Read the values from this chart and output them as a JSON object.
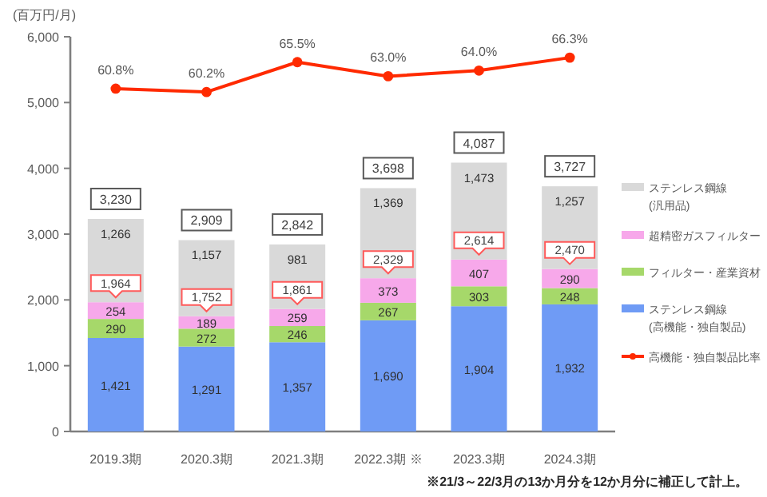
{
  "chart_data": {
    "type": "bar",
    "stacked": true,
    "ylabel": "(百万円/月)",
    "categories": [
      "2019.3期",
      "2020.3期",
      "2021.3期",
      "2022.3期 ※",
      "2023.3期",
      "2024.3期"
    ],
    "ylim": [
      0,
      6000
    ],
    "yticks": [
      {
        "value": 0,
        "label": "0"
      },
      {
        "value": 1000,
        "label": "1,000"
      },
      {
        "value": 2000,
        "label": "2,000"
      },
      {
        "value": 3000,
        "label": "3,000"
      },
      {
        "value": 4000,
        "label": "4,000"
      },
      {
        "value": 5000,
        "label": "5,000"
      },
      {
        "value": 6000,
        "label": "6,000"
      }
    ],
    "y2lim": [
      0,
      70
    ],
    "tick_labels": "xy",
    "grid": false,
    "legend": "right",
    "series": [
      {
        "name": "ステンレス鋼線\n(高機能・独自製品)",
        "color": "#6f9bf5",
        "values": [
          1421,
          1291,
          1357,
          1690,
          1904,
          1932
        ],
        "value_labels": [
          "1,421",
          "1,291",
          "1,357",
          "1,690",
          "1,904",
          "1,932"
        ]
      },
      {
        "name": "フィルター・産業資材",
        "color": "#a6d86a",
        "values": [
          290,
          272,
          246,
          267,
          303,
          248
        ],
        "value_labels": [
          "290",
          "272",
          "246",
          "267",
          "303",
          "248"
        ]
      },
      {
        "name": "超精密ガスフィルター",
        "color": "#f7a8ea",
        "values": [
          254,
          189,
          259,
          373,
          407,
          290
        ],
        "value_labels": [
          "254",
          "189",
          "259",
          "373",
          "407",
          "290"
        ]
      },
      {
        "name": "ステンレス鋼線\n(汎用品)",
        "color": "#d9d9d9",
        "values": [
          1266,
          1157,
          981,
          1369,
          1473,
          1257
        ],
        "value_labels": [
          "1,266",
          "1,157",
          "981",
          "1,369",
          "1,473",
          "1,257"
        ]
      },
      {
        "name": "高機能・独自製品比率",
        "type": "line",
        "axis": "y2",
        "marker": "circle",
        "line_style": "solid",
        "color": "#ff2a00",
        "values": [
          60.8,
          60.2,
          65.5,
          63.0,
          64.0,
          66.3
        ],
        "value_labels": [
          "60.8%",
          "60.2%",
          "65.5%",
          "63.0%",
          "64.0%",
          "66.3%"
        ]
      }
    ],
    "totals": [
      "3,230",
      "2,909",
      "2,842",
      "3,698",
      "4,087",
      "3,727"
    ],
    "annotations": [
      {
        "text": "1,964",
        "x": "2019.3期",
        "y": 1964
      },
      {
        "text": "1,752",
        "x": "2020.3期",
        "y": 1752
      },
      {
        "text": "1,861",
        "x": "2021.3期",
        "y": 1861
      },
      {
        "text": "2,329",
        "x": "2022.3期 ※",
        "y": 2329
      },
      {
        "text": "2,614",
        "x": "2023.3期",
        "y": 2614
      },
      {
        "text": "2,470",
        "x": "2024.3期",
        "y": 2470
      },
      "※21/3～22/3月の13か月分を12か月分に補正して計上。"
    ]
  }
}
